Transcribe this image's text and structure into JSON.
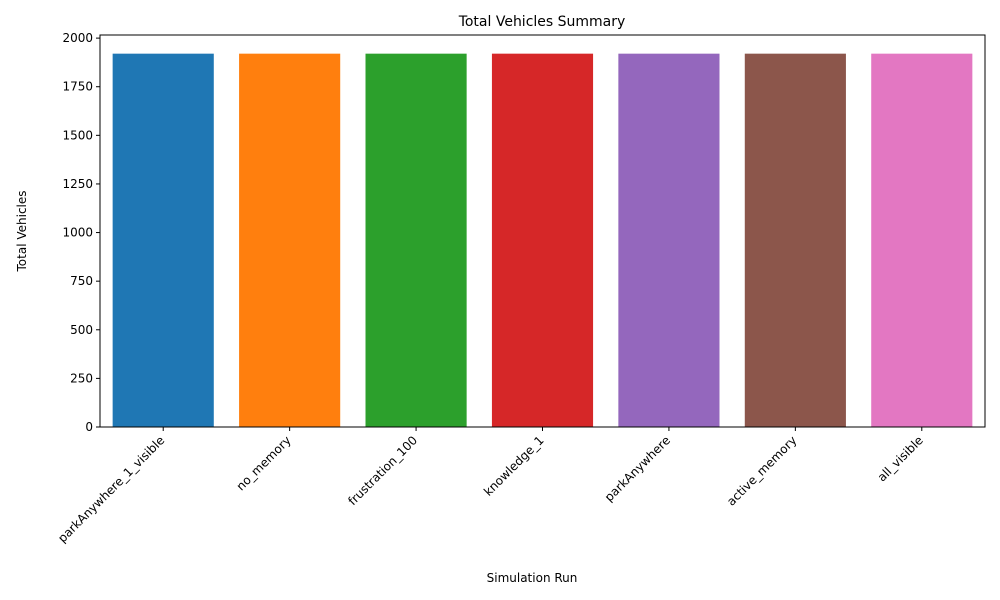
{
  "chart_data": {
    "type": "bar",
    "title": "Total Vehicles Summary",
    "xlabel": "Simulation Run",
    "ylabel": "Total Vehicles",
    "categories": [
      "parkAnywhere_1_visible",
      "no_memory",
      "frustration_100",
      "knowledge_1",
      "parkAnywhere",
      "active_memory",
      "all_visible"
    ],
    "values": [
      1920,
      1920,
      1920,
      1920,
      1920,
      1920,
      1920
    ],
    "colors": [
      "#1f77b4",
      "#ff7f0e",
      "#2ca02c",
      "#d62728",
      "#9467bd",
      "#8c564b",
      "#e377c2"
    ],
    "ylim": [
      0,
      2016
    ],
    "yticks": [
      0,
      250,
      500,
      750,
      1000,
      1250,
      1500,
      1750,
      2000
    ],
    "grid": false,
    "legend": "none"
  }
}
